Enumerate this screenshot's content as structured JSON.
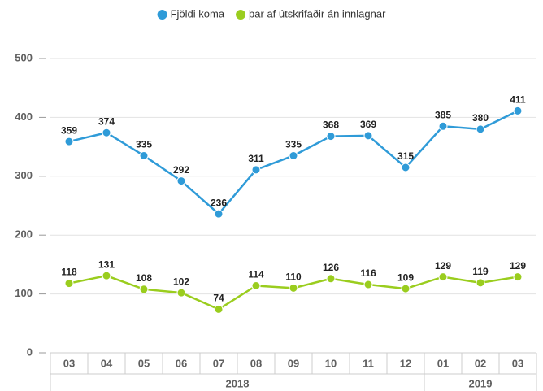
{
  "chart_data": {
    "type": "line",
    "categories": [
      "03",
      "04",
      "05",
      "06",
      "07",
      "08",
      "09",
      "10",
      "11",
      "12",
      "01",
      "02",
      "03"
    ],
    "category_groups": [
      "2018",
      "2018",
      "2018",
      "2018",
      "2018",
      "2018",
      "2018",
      "2018",
      "2018",
      "2018",
      "2019",
      "2019",
      "2019"
    ],
    "series": [
      {
        "name": "Fjöldi koma",
        "color": "#2f9bd8",
        "values": [
          359,
          374,
          335,
          292,
          236,
          311,
          335,
          368,
          369,
          315,
          385,
          380,
          411
        ]
      },
      {
        "name": "þar af útskrifaðir án innlagnar",
        "color": "#9acd1e",
        "values": [
          118,
          131,
          108,
          102,
          74,
          114,
          110,
          126,
          116,
          109,
          129,
          119,
          129
        ]
      }
    ],
    "ylim": [
      0,
      500
    ],
    "yticks": [
      0,
      100,
      200,
      300,
      400,
      500
    ],
    "grid": true,
    "legend": "top"
  }
}
